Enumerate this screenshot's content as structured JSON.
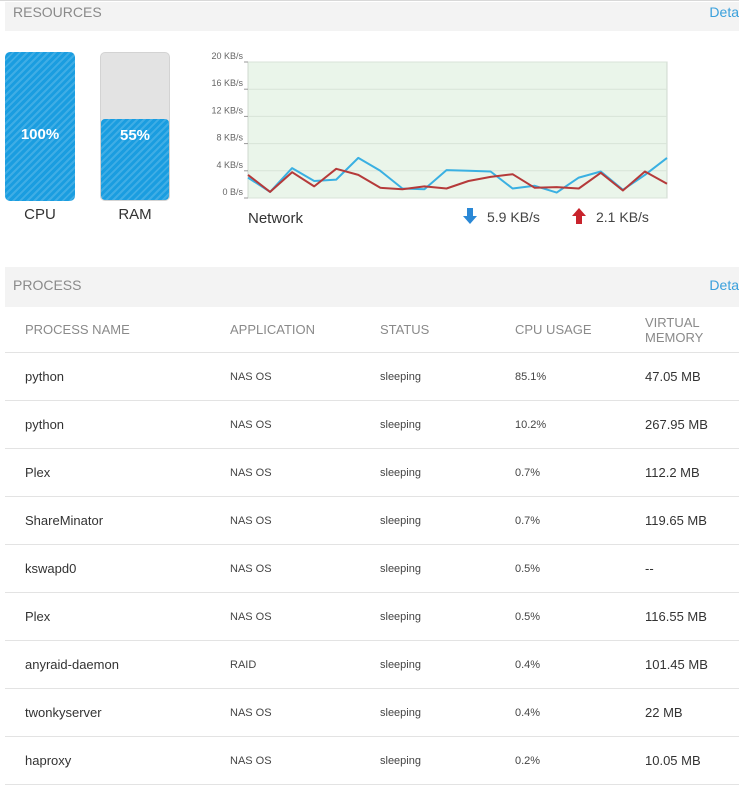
{
  "resources": {
    "title": "RESOURCES",
    "details_label": "Deta"
  },
  "cpu": {
    "label": "CPU",
    "percent_text": "100%",
    "level": 100
  },
  "ram": {
    "label": "RAM",
    "percent_text": "55%",
    "level": 55
  },
  "network": {
    "label": "Network",
    "download_rate": "5.9 KB/s",
    "upload_rate": "2.1 KB/s",
    "download_icon": "arrow-down-icon",
    "upload_icon": "arrow-up-icon",
    "colors": {
      "download": "#3ab0e2",
      "upload": "#b53a3a",
      "plot_bg": "#eaf5ea"
    }
  },
  "chart_data": {
    "type": "line",
    "y_ticks": [
      "20 KB/s",
      "16 KB/s",
      "12 KB/s",
      "8 KB/s",
      "4 KB/s",
      "0 B/s"
    ],
    "ylim": [
      0,
      20
    ],
    "grid": true,
    "series": [
      {
        "color": "#3ab0e2",
        "values": [
          3.0,
          0.9,
          4.4,
          2.5,
          2.7,
          5.9,
          4.0,
          1.4,
          1.3,
          4.1,
          4.0,
          3.9,
          1.4,
          1.8,
          0.8,
          3.0,
          3.9,
          1.2,
          3.4,
          5.9
        ]
      },
      {
        "color": "#b53a3a",
        "values": [
          3.4,
          0.9,
          3.8,
          1.7,
          4.3,
          3.4,
          1.5,
          1.3,
          1.7,
          1.4,
          2.5,
          3.1,
          3.5,
          1.5,
          1.6,
          1.4,
          3.7,
          1.1,
          3.9,
          2.1
        ]
      }
    ]
  },
  "process": {
    "title": "PROCESS",
    "details_label": "Deta",
    "columns": [
      "PROCESS NAME",
      "APPLICATION",
      "STATUS",
      "CPU USAGE",
      "VIRTUAL MEMORY"
    ],
    "rows": [
      {
        "name": "python",
        "application": "NAS OS",
        "status": "sleeping",
        "cpu": "85.1%",
        "memory": "47.05 MB"
      },
      {
        "name": "python",
        "application": "NAS OS",
        "status": "sleeping",
        "cpu": "10.2%",
        "memory": "267.95 MB"
      },
      {
        "name": "Plex",
        "application": "NAS OS",
        "status": "sleeping",
        "cpu": "0.7%",
        "memory": "112.2 MB"
      },
      {
        "name": "ShareMinator",
        "application": "NAS OS",
        "status": "sleeping",
        "cpu": "0.7%",
        "memory": "119.65 MB"
      },
      {
        "name": "kswapd0",
        "application": "NAS OS",
        "status": "sleeping",
        "cpu": "0.5%",
        "memory": "--"
      },
      {
        "name": "Plex",
        "application": "NAS OS",
        "status": "sleeping",
        "cpu": "0.5%",
        "memory": "116.55 MB"
      },
      {
        "name": "anyraid-daemon",
        "application": "RAID",
        "status": "sleeping",
        "cpu": "0.4%",
        "memory": "101.45 MB"
      },
      {
        "name": "twonkyserver",
        "application": "NAS OS",
        "status": "sleeping",
        "cpu": "0.4%",
        "memory": "22 MB"
      },
      {
        "name": "haproxy",
        "application": "NAS OS",
        "status": "sleeping",
        "cpu": "0.2%",
        "memory": "10.05 MB"
      }
    ]
  }
}
